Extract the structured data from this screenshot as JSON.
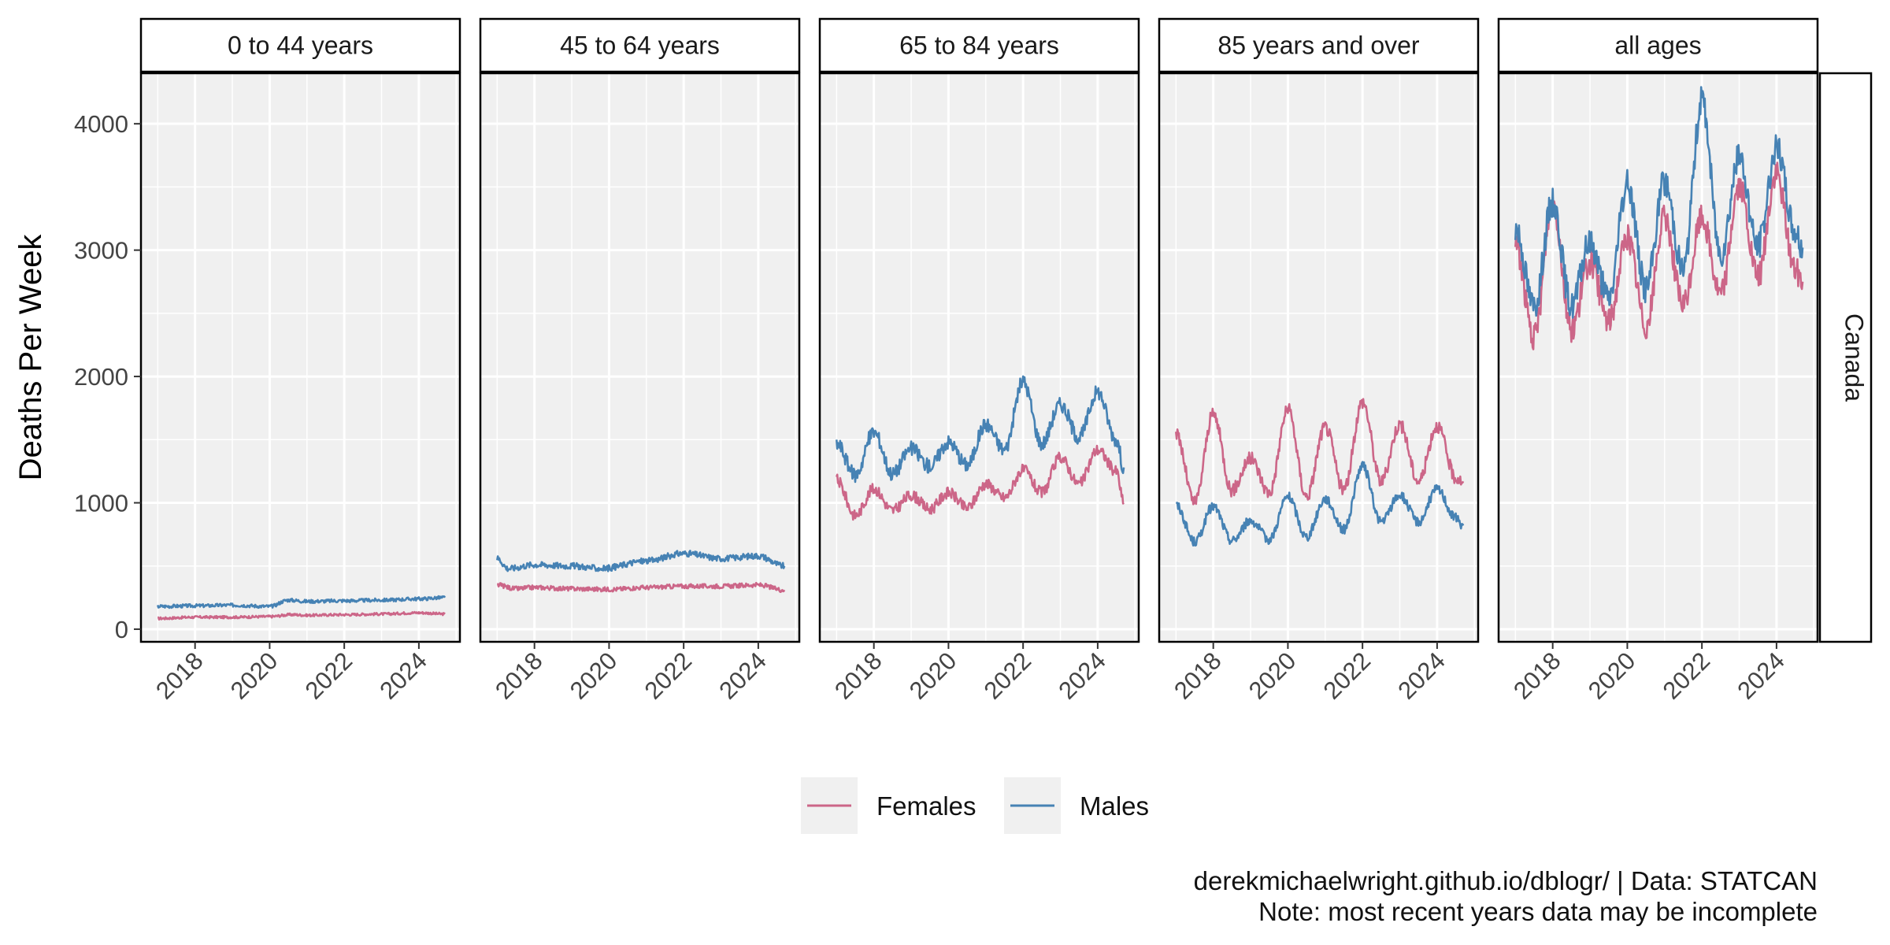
{
  "chart_data": {
    "type": "line",
    "ylabel": "Deaths Per Week",
    "xlabel": "",
    "ylim": [
      -100,
      4400
    ],
    "xlim": [
      2016.55,
      2025.1
    ],
    "x_ticks": [
      2018,
      2020,
      2022,
      2024
    ],
    "y_ticks": [
      0,
      1000,
      2000,
      3000,
      4000
    ],
    "grid": true,
    "strip_label_right": "Canada",
    "legend_position": "bottom",
    "legend": [
      {
        "name": "Females",
        "color": "#CC6688"
      },
      {
        "name": "Males",
        "color": "#4682B4"
      }
    ],
    "x_start": 2017.0,
    "x_end": 2024.7,
    "panels": [
      {
        "title": "0 to 44 years",
        "series": [
          {
            "name": "Females",
            "color": "#CC6688",
            "points": [
              [
                2017.0,
                85
              ],
              [
                2018.0,
                95
              ],
              [
                2019.0,
                95
              ],
              [
                2020.0,
                100
              ],
              [
                2020.6,
                115
              ],
              [
                2021.0,
                110
              ],
              [
                2022.0,
                115
              ],
              [
                2023.0,
                120
              ],
              [
                2024.0,
                130
              ],
              [
                2024.7,
                120
              ]
            ]
          },
          {
            "name": "Males",
            "color": "#4682B4",
            "points": [
              [
                2017.0,
                180
              ],
              [
                2018.0,
                185
              ],
              [
                2019.0,
                190
              ],
              [
                2020.0,
                180
              ],
              [
                2020.5,
                230
              ],
              [
                2021.0,
                220
              ],
              [
                2022.0,
                225
              ],
              [
                2023.0,
                230
              ],
              [
                2024.0,
                240
              ],
              [
                2024.7,
                250
              ]
            ]
          }
        ]
      },
      {
        "title": "45 to 64 years",
        "series": [
          {
            "name": "Females",
            "color": "#CC6688",
            "points": [
              [
                2017.0,
                350
              ],
              [
                2017.5,
                320
              ],
              [
                2018.0,
                330
              ],
              [
                2019.0,
                320
              ],
              [
                2020.0,
                315
              ],
              [
                2021.0,
                330
              ],
              [
                2022.0,
                340
              ],
              [
                2023.0,
                340
              ],
              [
                2024.0,
                350
              ],
              [
                2024.7,
                310
              ]
            ]
          },
          {
            "name": "Males",
            "color": "#4682B4",
            "points": [
              [
                2017.0,
                560
              ],
              [
                2017.3,
                480
              ],
              [
                2018.0,
                510
              ],
              [
                2019.0,
                500
              ],
              [
                2019.8,
                480
              ],
              [
                2021.0,
                540
              ],
              [
                2022.0,
                600
              ],
              [
                2023.0,
                560
              ],
              [
                2024.0,
                580
              ],
              [
                2024.7,
                500
              ]
            ]
          }
        ]
      },
      {
        "title": "65 to 84 years",
        "series": [
          {
            "name": "Females",
            "color": "#CC6688",
            "points": [
              [
                2017.0,
                1180
              ],
              [
                2017.5,
                900
              ],
              [
                2018.0,
                1110
              ],
              [
                2018.5,
                940
              ],
              [
                2019.0,
                1060
              ],
              [
                2019.5,
                950
              ],
              [
                2020.0,
                1080
              ],
              [
                2020.5,
                960
              ],
              [
                2021.0,
                1150
              ],
              [
                2021.5,
                1040
              ],
              [
                2022.0,
                1260
              ],
              [
                2022.5,
                1080
              ],
              [
                2023.0,
                1360
              ],
              [
                2023.5,
                1150
              ],
              [
                2024.0,
                1420
              ],
              [
                2024.5,
                1250
              ],
              [
                2024.7,
                1000
              ]
            ]
          },
          {
            "name": "Males",
            "color": "#4682B4",
            "points": [
              [
                2017.0,
                1470
              ],
              [
                2017.5,
                1220
              ],
              [
                2018.0,
                1560
              ],
              [
                2018.5,
                1230
              ],
              [
                2019.0,
                1430
              ],
              [
                2019.5,
                1290
              ],
              [
                2020.0,
                1480
              ],
              [
                2020.5,
                1300
              ],
              [
                2021.0,
                1620
              ],
              [
                2021.5,
                1420
              ],
              [
                2022.0,
                1960
              ],
              [
                2022.5,
                1470
              ],
              [
                2023.0,
                1780
              ],
              [
                2023.5,
                1520
              ],
              [
                2024.0,
                1880
              ],
              [
                2024.5,
                1500
              ],
              [
                2024.7,
                1280
              ]
            ]
          }
        ]
      },
      {
        "title": "85 years and over",
        "series": [
          {
            "name": "Females",
            "color": "#CC6688",
            "points": [
              [
                2017.0,
                1540
              ],
              [
                2017.5,
                1000
              ],
              [
                2018.0,
                1700
              ],
              [
                2018.5,
                1100
              ],
              [
                2019.0,
                1350
              ],
              [
                2019.5,
                1080
              ],
              [
                2020.0,
                1740
              ],
              [
                2020.5,
                1050
              ],
              [
                2021.0,
                1600
              ],
              [
                2021.5,
                1100
              ],
              [
                2022.0,
                1800
              ],
              [
                2022.5,
                1170
              ],
              [
                2023.0,
                1620
              ],
              [
                2023.5,
                1170
              ],
              [
                2024.0,
                1610
              ],
              [
                2024.5,
                1200
              ],
              [
                2024.7,
                1170
              ]
            ]
          },
          {
            "name": "Males",
            "color": "#4682B4",
            "points": [
              [
                2017.0,
                980
              ],
              [
                2017.5,
                690
              ],
              [
                2018.0,
                970
              ],
              [
                2018.5,
                700
              ],
              [
                2019.0,
                860
              ],
              [
                2019.5,
                710
              ],
              [
                2020.0,
                1050
              ],
              [
                2020.5,
                730
              ],
              [
                2021.0,
                1030
              ],
              [
                2021.5,
                790
              ],
              [
                2022.0,
                1290
              ],
              [
                2022.5,
                850
              ],
              [
                2023.0,
                1060
              ],
              [
                2023.5,
                850
              ],
              [
                2024.0,
                1110
              ],
              [
                2024.5,
                880
              ],
              [
                2024.7,
                820
              ]
            ]
          }
        ]
      },
      {
        "title": "all ages",
        "series": [
          {
            "name": "Females",
            "color": "#CC6688",
            "points": [
              [
                2017.0,
                3050
              ],
              [
                2017.5,
                2300
              ],
              [
                2018.0,
                3380
              ],
              [
                2018.5,
                2380
              ],
              [
                2019.0,
                2900
              ],
              [
                2019.5,
                2440
              ],
              [
                2020.0,
                3100
              ],
              [
                2020.5,
                2400
              ],
              [
                2021.0,
                3250
              ],
              [
                2021.5,
                2560
              ],
              [
                2022.0,
                3260
              ],
              [
                2022.5,
                2650
              ],
              [
                2023.0,
                3500
              ],
              [
                2023.5,
                2780
              ],
              [
                2024.0,
                3600
              ],
              [
                2024.5,
                2850
              ],
              [
                2024.7,
                2750
              ]
            ]
          },
          {
            "name": "Males",
            "color": "#4682B4",
            "points": [
              [
                2017.0,
                3180
              ],
              [
                2017.5,
                2560
              ],
              [
                2018.0,
                3380
              ],
              [
                2018.5,
                2560
              ],
              [
                2019.0,
                3060
              ],
              [
                2019.5,
                2620
              ],
              [
                2020.0,
                3520
              ],
              [
                2020.5,
                2700
              ],
              [
                2021.0,
                3540
              ],
              [
                2021.5,
                2850
              ],
              [
                2022.0,
                4180
              ],
              [
                2022.5,
                2980
              ],
              [
                2023.0,
                3730
              ],
              [
                2023.5,
                3030
              ],
              [
                2024.0,
                3810
              ],
              [
                2024.5,
                3150
              ],
              [
                2024.7,
                3020
              ]
            ]
          }
        ]
      }
    ]
  },
  "caption": {
    "line1": "derekmichaelwright.github.io/dblogr/ | Data: STATCAN",
    "line2": "Note: most recent years data may be incomplete"
  }
}
